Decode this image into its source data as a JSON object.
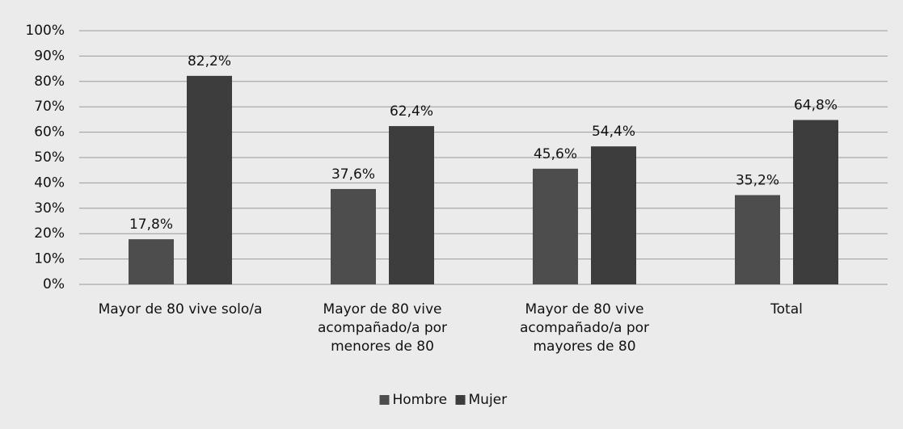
{
  "chart_data": {
    "type": "bar",
    "categories": [
      "Mayor de 80 vive solo/a",
      "Mayor de 80 vive acompañado/a por menores de 80",
      "Mayor de 80 vive acompañado/a por mayores de 80",
      "Total"
    ],
    "series": [
      {
        "name": "Hombre",
        "color": "#4d4d4d",
        "values": [
          17.8,
          37.6,
          45.6,
          35.2
        ],
        "value_labels": [
          "17,8%",
          "37,6%",
          "45,6%",
          "35,2%"
        ]
      },
      {
        "name": "Mujer",
        "color": "#3d3d3d",
        "values": [
          82.2,
          62.4,
          54.4,
          64.8
        ],
        "value_labels": [
          "82,2%",
          "62,4%",
          "54,4%",
          "64,8%"
        ]
      }
    ],
    "ylim": [
      0,
      100
    ],
    "yticks": [
      {
        "value": 0,
        "label": "0%"
      },
      {
        "value": 10,
        "label": "10%"
      },
      {
        "value": 20,
        "label": "20%"
      },
      {
        "value": 30,
        "label": "30%"
      },
      {
        "value": 40,
        "label": "40%"
      },
      {
        "value": 50,
        "label": "50%"
      },
      {
        "value": 60,
        "label": "60%"
      },
      {
        "value": 70,
        "label": "70%"
      },
      {
        "value": 80,
        "label": "80%"
      },
      {
        "value": 90,
        "label": "90%"
      },
      {
        "value": 100,
        "label": "100%"
      }
    ],
    "grid": true,
    "legend": "bottom"
  }
}
